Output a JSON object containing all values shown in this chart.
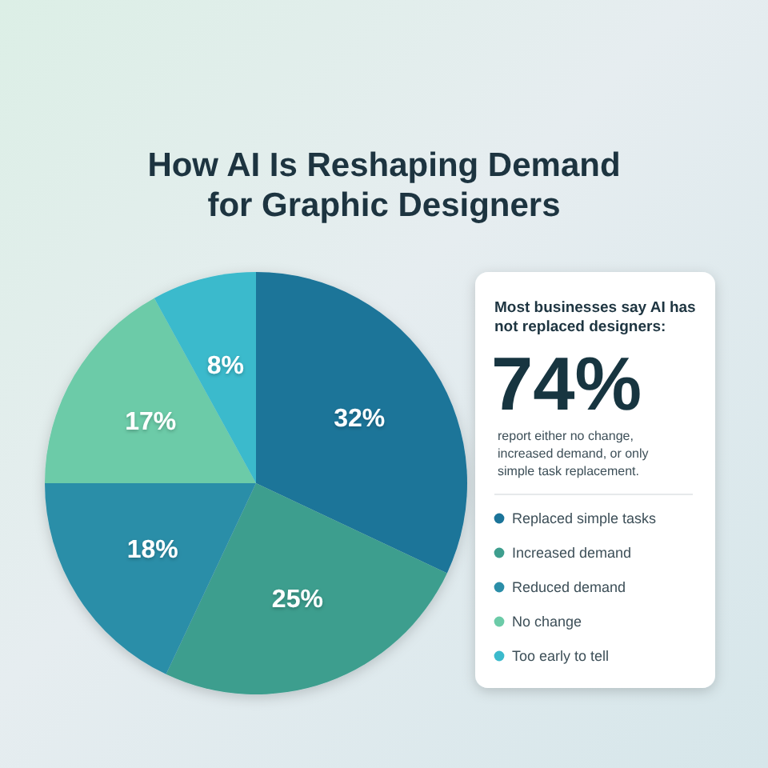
{
  "chart_data": {
    "type": "pie",
    "title": "How AI Is Reshaping Demand for Graphic Designers",
    "categories": [
      "Replaced simple tasks",
      "Increased demand",
      "Reduced demand",
      "No change",
      "Too early to tell"
    ],
    "values": [
      32,
      25,
      18,
      17,
      8
    ],
    "colors": [
      "#1b7499",
      "#3e9e8e",
      "#2b8ea8",
      "#6ccba8",
      "#3bbacc"
    ],
    "value_labels": [
      "32%",
      "25%",
      "18%",
      "17%",
      "8%"
    ],
    "legend": "right",
    "annotations": [
      "Most businesses say AI has not replaced designers:",
      "74%",
      "report either no change, increased demand, or only simple task replacement."
    ]
  }
}
